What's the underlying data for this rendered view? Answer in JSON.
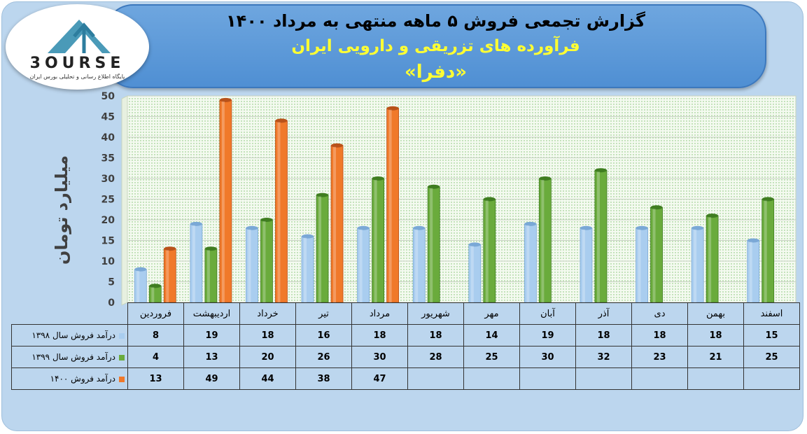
{
  "header": {
    "title_line1": "گزارش تجمعی فروش ۵ ماهه منتهی به مرداد ۱۴۰۰",
    "title_line2": "فرآورده های تزریقی و دارویی ایران",
    "title_line3": "«دفرا»"
  },
  "logo": {
    "word": "3OURSE",
    "tagline": "پایگاه اطلاع رسانی و تحلیلی بورس ایران"
  },
  "colors": {
    "series_1398": "#a9cdef",
    "series_1399": "#6aab3c",
    "series_1400": "#f0792a",
    "banner": "#5b9bd5"
  },
  "chart_data": {
    "type": "bar",
    "ylabel": "میلیارد تومان",
    "ylim": [
      0,
      50
    ],
    "yticks": [
      "0",
      "5",
      "10",
      "15",
      "20",
      "25",
      "30",
      "35",
      "40",
      "45",
      "50"
    ],
    "categories": [
      "فروردین",
      "اردیبهشت",
      "خرداد",
      "تیر",
      "مرداد",
      "شهریور",
      "مهر",
      "آبان",
      "آذر",
      "دی",
      "بهمن",
      "اسفند"
    ],
    "series": [
      {
        "name": "درآمد فروش سال ۱۳۹۸",
        "values": [
          8,
          19,
          18,
          16,
          18,
          18,
          14,
          19,
          18,
          18,
          18,
          15
        ]
      },
      {
        "name": "درآمد فروش سال ۱۳۹۹",
        "values": [
          4,
          13,
          20,
          26,
          30,
          28,
          25,
          30,
          32,
          23,
          21,
          25
        ]
      },
      {
        "name": "درآمد فروش ۱۴۰۰",
        "values": [
          13,
          49,
          44,
          38,
          47,
          null,
          null,
          null,
          null,
          null,
          null,
          null
        ]
      }
    ],
    "grid": true,
    "legend": "data-table"
  }
}
